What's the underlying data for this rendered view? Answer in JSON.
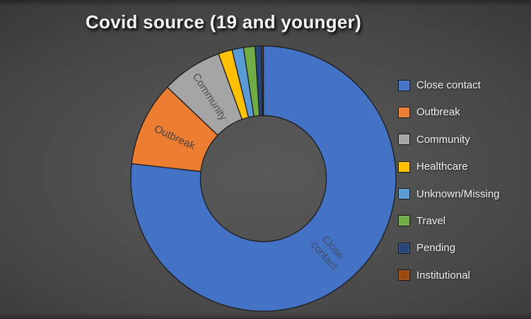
{
  "chart_data": {
    "type": "pie",
    "subtype": "donut",
    "title": "Covid source (19 and younger)",
    "categories": [
      "Close contact",
      "Outbreak",
      "Community",
      "Healthcare",
      "Unknown/Missing",
      "Travel",
      "Pending",
      "Institutional"
    ],
    "values_pct": [
      76.8,
      10.3,
      7.4,
      1.7,
      1.4,
      1.4,
      0.8,
      0.2
    ],
    "colors": [
      "#4472C4",
      "#ED7D31",
      "#A5A5A5",
      "#FFC000",
      "#5B9BD5",
      "#70AD47",
      "#264478",
      "#9E480E"
    ],
    "legend_position": "right",
    "start_angle_deg": 0,
    "direction": "clockwise",
    "inner_radius_ratio": 0.475,
    "outline_color": "#1b1b1b",
    "slice_labels": [
      {
        "index": 0,
        "lines": [
          "Close",
          "contact"
        ],
        "color": "#3e4e68"
      },
      {
        "index": 1,
        "lines": [
          "Outbreak"
        ],
        "color": "#454545"
      },
      {
        "index": 2,
        "lines": [
          "Community"
        ],
        "color": "#4f4f4f"
      }
    ]
  }
}
